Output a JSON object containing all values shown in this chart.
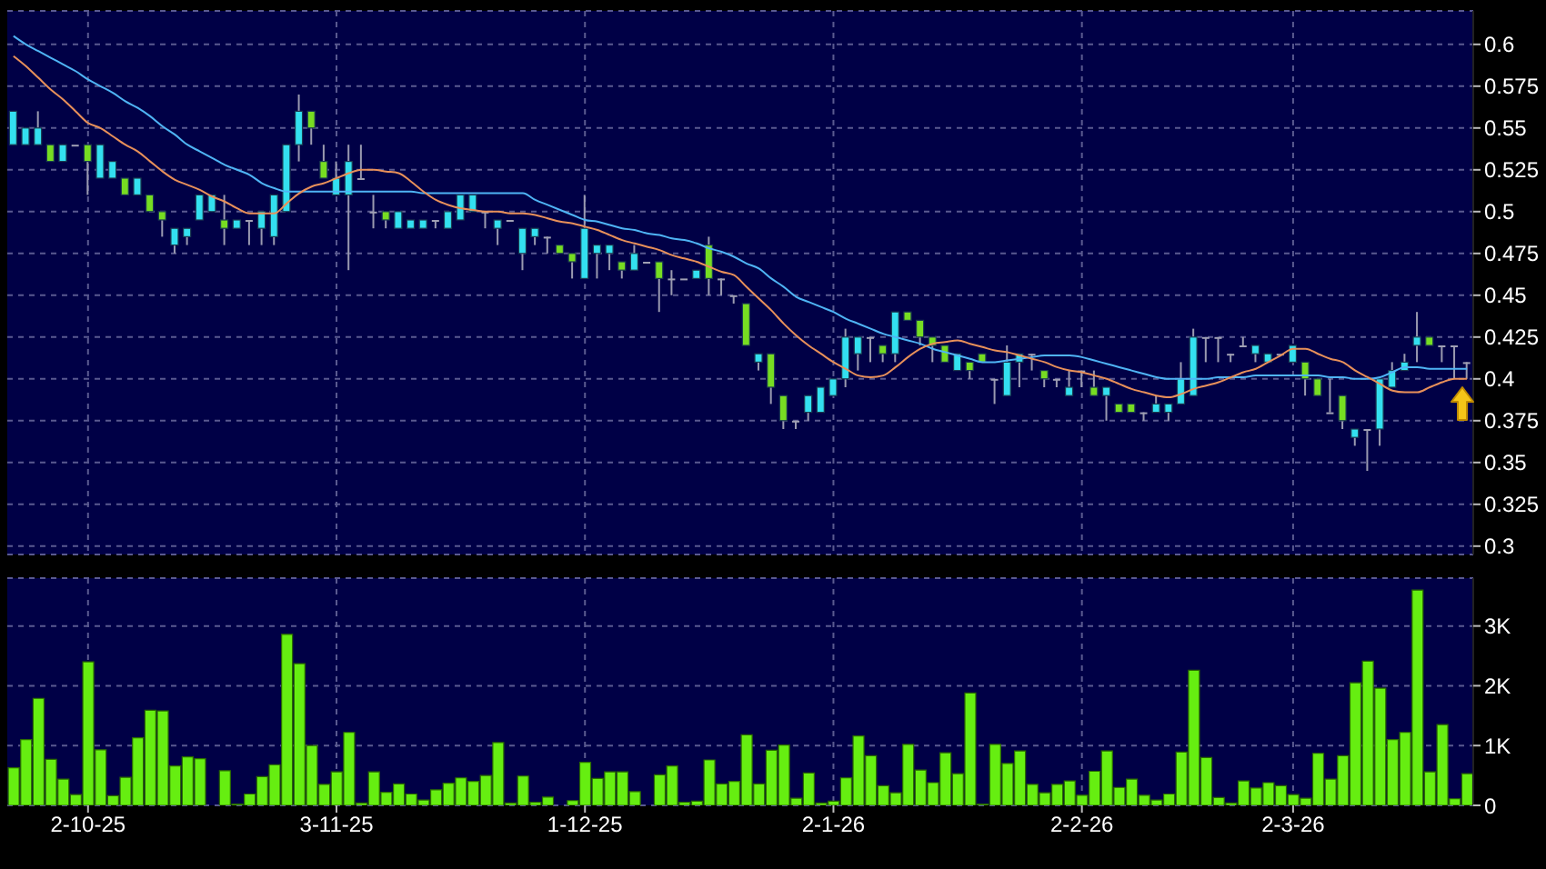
{
  "chart_data": [
    {
      "type": "candlestick",
      "ohlc": [
        [
          0.54,
          0.56,
          0.54,
          0.56
        ],
        [
          0.54,
          0.55,
          0.54,
          0.55
        ],
        [
          0.54,
          0.56,
          0.54,
          0.55
        ],
        [
          0.54,
          0.54,
          0.53,
          0.53
        ],
        [
          0.53,
          0.54,
          0.53,
          0.54
        ],
        [
          0.54,
          0.54,
          0.54,
          0.54
        ],
        [
          0.54,
          0.54,
          0.51,
          0.53
        ],
        [
          0.52,
          0.54,
          0.52,
          0.54
        ],
        [
          0.52,
          0.53,
          0.52,
          0.53
        ],
        [
          0.52,
          0.52,
          0.51,
          0.51
        ],
        [
          0.51,
          0.52,
          0.51,
          0.52
        ],
        [
          0.51,
          0.51,
          0.5,
          0.5
        ],
        [
          0.5,
          0.5,
          0.485,
          0.495
        ],
        [
          0.48,
          0.49,
          0.475,
          0.49
        ],
        [
          0.485,
          0.49,
          0.48,
          0.49
        ],
        [
          0.495,
          0.51,
          0.495,
          0.51
        ],
        [
          0.5,
          0.51,
          0.5,
          0.51
        ],
        [
          0.495,
          0.51,
          0.48,
          0.49
        ],
        [
          0.49,
          0.495,
          0.49,
          0.495
        ],
        [
          0.495,
          0.495,
          0.48,
          0.495
        ],
        [
          0.49,
          0.5,
          0.48,
          0.5
        ],
        [
          0.485,
          0.51,
          0.48,
          0.51
        ],
        [
          0.5,
          0.54,
          0.5,
          0.54
        ],
        [
          0.54,
          0.57,
          0.53,
          0.56
        ],
        [
          0.56,
          0.56,
          0.54,
          0.55
        ],
        [
          0.53,
          0.54,
          0.52,
          0.52
        ],
        [
          0.51,
          0.53,
          0.51,
          0.52
        ],
        [
          0.51,
          0.54,
          0.465,
          0.53
        ],
        [
          0.52,
          0.54,
          0.52,
          0.52
        ],
        [
          0.5,
          0.51,
          0.49,
          0.5
        ],
        [
          0.5,
          0.5,
          0.49,
          0.495
        ],
        [
          0.49,
          0.5,
          0.49,
          0.5
        ],
        [
          0.49,
          0.495,
          0.49,
          0.495
        ],
        [
          0.49,
          0.495,
          0.49,
          0.495
        ],
        [
          0.495,
          0.495,
          0.49,
          0.495
        ],
        [
          0.49,
          0.5,
          0.49,
          0.5
        ],
        [
          0.495,
          0.51,
          0.495,
          0.51
        ],
        [
          0.5,
          0.51,
          0.5,
          0.51
        ],
        [
          0.5,
          0.5,
          0.49,
          0.5
        ],
        [
          0.49,
          0.495,
          0.48,
          0.495
        ],
        [
          0.495,
          0.495,
          0.495,
          0.495
        ],
        [
          0.475,
          0.49,
          0.465,
          0.49
        ],
        [
          0.485,
          0.49,
          0.48,
          0.49
        ],
        [
          0.485,
          0.485,
          0.475,
          0.485
        ],
        [
          0.48,
          0.48,
          0.475,
          0.475
        ],
        [
          0.475,
          0.475,
          0.46,
          0.47
        ],
        [
          0.46,
          0.51,
          0.46,
          0.49
        ],
        [
          0.475,
          0.48,
          0.46,
          0.48
        ],
        [
          0.475,
          0.48,
          0.465,
          0.48
        ],
        [
          0.47,
          0.47,
          0.46,
          0.465
        ],
        [
          0.465,
          0.48,
          0.465,
          0.475
        ],
        [
          0.47,
          0.47,
          0.47,
          0.47
        ],
        [
          0.47,
          0.47,
          0.44,
          0.46
        ],
        [
          0.46,
          0.465,
          0.45,
          0.46
        ],
        [
          0.46,
          0.46,
          0.46,
          0.46
        ],
        [
          0.46,
          0.465,
          0.46,
          0.465
        ],
        [
          0.48,
          0.485,
          0.45,
          0.46
        ],
        [
          0.46,
          0.46,
          0.45,
          0.46
        ],
        [
          0.45,
          0.45,
          0.445,
          0.45
        ],
        [
          0.445,
          0.445,
          0.42,
          0.42
        ],
        [
          0.41,
          0.415,
          0.405,
          0.415
        ],
        [
          0.415,
          0.415,
          0.385,
          0.395
        ],
        [
          0.39,
          0.39,
          0.37,
          0.375
        ],
        [
          0.375,
          0.375,
          0.37,
          0.375
        ],
        [
          0.38,
          0.39,
          0.375,
          0.39
        ],
        [
          0.38,
          0.395,
          0.38,
          0.395
        ],
        [
          0.39,
          0.4,
          0.39,
          0.4
        ],
        [
          0.4,
          0.43,
          0.395,
          0.425
        ],
        [
          0.415,
          0.425,
          0.405,
          0.425
        ],
        [
          0.425,
          0.425,
          0.41,
          0.425
        ],
        [
          0.42,
          0.42,
          0.41,
          0.415
        ],
        [
          0.415,
          0.44,
          0.41,
          0.44
        ],
        [
          0.44,
          0.44,
          0.435,
          0.435
        ],
        [
          0.435,
          0.435,
          0.42,
          0.425
        ],
        [
          0.425,
          0.425,
          0.41,
          0.42
        ],
        [
          0.42,
          0.42,
          0.41,
          0.41
        ],
        [
          0.405,
          0.415,
          0.405,
          0.415
        ],
        [
          0.41,
          0.41,
          0.4,
          0.405
        ],
        [
          0.415,
          0.415,
          0.41,
          0.41
        ],
        [
          0.4,
          0.4,
          0.385,
          0.4
        ],
        [
          0.39,
          0.42,
          0.39,
          0.41
        ],
        [
          0.41,
          0.415,
          0.395,
          0.415
        ],
        [
          0.415,
          0.415,
          0.405,
          0.415
        ],
        [
          0.405,
          0.405,
          0.395,
          0.4
        ],
        [
          0.4,
          0.4,
          0.395,
          0.4
        ],
        [
          0.39,
          0.405,
          0.39,
          0.395
        ],
        [
          0.405,
          0.405,
          0.395,
          0.405
        ],
        [
          0.395,
          0.405,
          0.39,
          0.39
        ],
        [
          0.39,
          0.395,
          0.375,
          0.395
        ],
        [
          0.385,
          0.385,
          0.38,
          0.38
        ],
        [
          0.385,
          0.385,
          0.38,
          0.38
        ],
        [
          0.38,
          0.38,
          0.375,
          0.38
        ],
        [
          0.38,
          0.39,
          0.38,
          0.385
        ],
        [
          0.38,
          0.385,
          0.375,
          0.385
        ],
        [
          0.385,
          0.41,
          0.385,
          0.4
        ],
        [
          0.39,
          0.43,
          0.39,
          0.425
        ],
        [
          0.425,
          0.425,
          0.41,
          0.425
        ],
        [
          0.425,
          0.425,
          0.41,
          0.425
        ],
        [
          0.415,
          0.415,
          0.41,
          0.415
        ],
        [
          0.42,
          0.425,
          0.42,
          0.42
        ],
        [
          0.415,
          0.42,
          0.41,
          0.42
        ],
        [
          0.41,
          0.415,
          0.41,
          0.415
        ],
        [
          0.415,
          0.415,
          0.415,
          0.415
        ],
        [
          0.41,
          0.42,
          0.41,
          0.42
        ],
        [
          0.41,
          0.41,
          0.39,
          0.4
        ],
        [
          0.4,
          0.4,
          0.39,
          0.39
        ],
        [
          0.38,
          0.4,
          0.38,
          0.38
        ],
        [
          0.39,
          0.39,
          0.37,
          0.375
        ],
        [
          0.365,
          0.37,
          0.36,
          0.37
        ],
        [
          0.37,
          0.37,
          0.345,
          0.37
        ],
        [
          0.37,
          0.4,
          0.36,
          0.4
        ],
        [
          0.395,
          0.41,
          0.395,
          0.405
        ],
        [
          0.405,
          0.415,
          0.405,
          0.41
        ],
        [
          0.42,
          0.44,
          0.41,
          0.425
        ],
        [
          0.425,
          0.425,
          0.42,
          0.42
        ],
        [
          0.42,
          0.42,
          0.41,
          0.42
        ],
        [
          0.42,
          0.42,
          0.4,
          0.42
        ],
        [
          0.41,
          0.41,
          0.4,
          0.41
        ]
      ],
      "colors": [
        "#33e0f0",
        "#33e0f0",
        "#33e0f0",
        "#77dd22",
        "#33e0f0",
        "#a0a0b4",
        "#77dd22",
        "#33e0f0",
        "#33e0f0",
        "#77dd22",
        "#33e0f0",
        "#77dd22",
        "#77dd22",
        "#33e0f0",
        "#33e0f0",
        "#33e0f0",
        "#33e0f0",
        "#77dd22",
        "#33e0f0",
        "#a0a0b4",
        "#33e0f0",
        "#33e0f0",
        "#33e0f0",
        "#33e0f0",
        "#77dd22",
        "#77dd22",
        "#33e0f0",
        "#33e0f0",
        "#a0a0b4",
        "#a0a0b4",
        "#77dd22",
        "#33e0f0",
        "#33e0f0",
        "#33e0f0",
        "#a0a0b4",
        "#33e0f0",
        "#33e0f0",
        "#33e0f0",
        "#a0a0b4",
        "#33e0f0",
        "#a0a0b4",
        "#33e0f0",
        "#33e0f0",
        "#a0a0b4",
        "#77dd22",
        "#77dd22",
        "#33e0f0",
        "#33e0f0",
        "#33e0f0",
        "#77dd22",
        "#33e0f0",
        "#a0a0b4",
        "#77dd22",
        "#a0a0b4",
        "#a0a0b4",
        "#33e0f0",
        "#77dd22",
        "#a0a0b4",
        "#a0a0b4",
        "#77dd22",
        "#33e0f0",
        "#77dd22",
        "#77dd22",
        "#a0a0b4",
        "#33e0f0",
        "#33e0f0",
        "#33e0f0",
        "#33e0f0",
        "#33e0f0",
        "#a0a0b4",
        "#77dd22",
        "#33e0f0",
        "#77dd22",
        "#77dd22",
        "#77dd22",
        "#77dd22",
        "#33e0f0",
        "#77dd22",
        "#77dd22",
        "#a0a0b4",
        "#33e0f0",
        "#33e0f0",
        "#a0a0b4",
        "#77dd22",
        "#a0a0b4",
        "#33e0f0",
        "#a0a0b4",
        "#77dd22",
        "#33e0f0",
        "#77dd22",
        "#77dd22",
        "#a0a0b4",
        "#33e0f0",
        "#33e0f0",
        "#33e0f0",
        "#33e0f0",
        "#a0a0b4",
        "#a0a0b4",
        "#a0a0b4",
        "#a0a0b4",
        "#33e0f0",
        "#33e0f0",
        "#a0a0b4",
        "#33e0f0",
        "#77dd22",
        "#77dd22",
        "#a0a0b4",
        "#77dd22",
        "#33e0f0",
        "#a0a0b4",
        "#33e0f0",
        "#33e0f0",
        "#33e0f0",
        "#33e0f0",
        "#77dd22",
        "#a0a0b4",
        "#a0a0b4",
        "#a0a0b4"
      ],
      "series": [
        {
          "type": "line",
          "color": "#4fb4f5",
          "values": [
            0.605,
            0.6,
            0.596,
            0.592,
            0.588,
            0.584,
            0.579,
            0.575,
            0.571,
            0.566,
            0.562,
            0.557,
            0.551,
            0.546,
            0.54,
            0.536,
            0.532,
            0.528,
            0.525,
            0.522,
            0.517,
            0.514,
            0.512,
            0.512,
            0.512,
            0.512,
            0.512,
            0.512,
            0.512,
            0.512,
            0.512,
            0.512,
            0.512,
            0.511,
            0.511,
            0.511,
            0.511,
            0.511,
            0.511,
            0.511,
            0.511,
            0.511,
            0.507,
            0.504,
            0.501,
            0.498,
            0.495,
            0.494,
            0.492,
            0.49,
            0.489,
            0.487,
            0.486,
            0.484,
            0.483,
            0.481,
            0.478,
            0.476,
            0.473,
            0.469,
            0.466,
            0.46,
            0.455,
            0.449,
            0.446,
            0.443,
            0.44,
            0.436,
            0.433,
            0.43,
            0.427,
            0.425,
            0.423,
            0.421,
            0.418,
            0.416,
            0.414,
            0.412,
            0.41,
            0.41,
            0.411,
            0.412,
            0.413,
            0.414,
            0.414,
            0.414,
            0.413,
            0.411,
            0.409,
            0.407,
            0.405,
            0.403,
            0.401,
            0.4,
            0.4,
            0.4,
            0.4,
            0.401,
            0.401,
            0.401,
            0.402,
            0.402,
            0.402,
            0.402,
            0.402,
            0.402,
            0.401,
            0.401,
            0.4,
            0.4,
            0.401,
            0.404,
            0.407,
            0.407,
            0.406,
            0.406,
            0.406,
            0.406
          ]
        },
        {
          "type": "line",
          "color": "#e8905a",
          "values": [
            0.593,
            0.587,
            0.58,
            0.573,
            0.567,
            0.56,
            0.553,
            0.55,
            0.545,
            0.54,
            0.536,
            0.53,
            0.524,
            0.519,
            0.516,
            0.513,
            0.509,
            0.506,
            0.502,
            0.499,
            0.499,
            0.499,
            0.505,
            0.511,
            0.515,
            0.517,
            0.52,
            0.523,
            0.525,
            0.525,
            0.524,
            0.523,
            0.518,
            0.512,
            0.507,
            0.504,
            0.502,
            0.501,
            0.5,
            0.5,
            0.499,
            0.499,
            0.498,
            0.496,
            0.494,
            0.493,
            0.491,
            0.489,
            0.486,
            0.483,
            0.481,
            0.479,
            0.477,
            0.474,
            0.472,
            0.47,
            0.467,
            0.464,
            0.462,
            0.455,
            0.448,
            0.441,
            0.433,
            0.426,
            0.42,
            0.415,
            0.41,
            0.406,
            0.402,
            0.401,
            0.402,
            0.407,
            0.413,
            0.418,
            0.421,
            0.422,
            0.423,
            0.421,
            0.419,
            0.417,
            0.416,
            0.414,
            0.412,
            0.41,
            0.407,
            0.405,
            0.404,
            0.402,
            0.4,
            0.397,
            0.394,
            0.392,
            0.39,
            0.389,
            0.391,
            0.394,
            0.396,
            0.398,
            0.401,
            0.404,
            0.406,
            0.41,
            0.414,
            0.418,
            0.418,
            0.415,
            0.412,
            0.41,
            0.405,
            0.401,
            0.397,
            0.393,
            0.392,
            0.392,
            0.395,
            0.398,
            0.4,
            0.4
          ]
        }
      ],
      "ylim": [
        0.295,
        0.62
      ],
      "yticks": [
        0.3,
        0.325,
        0.35,
        0.375,
        0.4,
        0.425,
        0.45,
        0.475,
        0.5,
        0.525,
        0.55,
        0.575,
        0.6
      ],
      "grid": true,
      "tick_labels": "y"
    },
    {
      "type": "bar",
      "categories": [
        null,
        null,
        null,
        null,
        null,
        null,
        "2-10-25",
        null,
        null,
        null,
        null,
        null,
        null,
        null,
        null,
        null,
        null,
        null,
        null,
        null,
        null,
        null,
        null,
        null,
        null,
        null,
        "3-11-25",
        null,
        null,
        null,
        null,
        null,
        null,
        null,
        null,
        null,
        null,
        null,
        null,
        null,
        null,
        null,
        null,
        null,
        null,
        null,
        "1-12-25",
        null,
        null,
        null,
        null,
        null,
        null,
        null,
        null,
        null,
        null,
        null,
        null,
        null,
        null,
        null,
        null,
        null,
        null,
        null,
        "2-1-26",
        null,
        null,
        null,
        null,
        null,
        null,
        null,
        null,
        null,
        null,
        null,
        null,
        null,
        null,
        null,
        null,
        null,
        null,
        null,
        "2-2-26",
        null,
        null,
        null,
        null,
        null,
        null,
        null,
        null,
        null,
        null,
        null,
        null,
        null,
        null,
        null,
        null,
        "2-3-26",
        null,
        null,
        null,
        null,
        null,
        null,
        null,
        null,
        null,
        null,
        null,
        null,
        null,
        null
      ],
      "values": [
        630,
        1100,
        1790,
        770,
        440,
        180,
        2400,
        930,
        160,
        470,
        1130,
        1590,
        1580,
        660,
        810,
        780,
        null,
        580,
        20,
        190,
        480,
        680,
        2860,
        2370,
        1000,
        350,
        560,
        1220,
        40,
        560,
        220,
        360,
        190,
        90,
        260,
        370,
        460,
        400,
        500,
        1050,
        40,
        490,
        50,
        140,
        null,
        80,
        720,
        450,
        560,
        560,
        230,
        null,
        510,
        660,
        50,
        70,
        760,
        360,
        400,
        1180,
        360,
        920,
        1010,
        120,
        540,
        40,
        70,
        460,
        1160,
        830,
        330,
        210,
        1020,
        590,
        380,
        880,
        530,
        1880,
        20,
        1020,
        700,
        910,
        350,
        210,
        350,
        410,
        170,
        570,
        910,
        300,
        440,
        170,
        90,
        190,
        890,
        2260,
        800,
        130,
        40,
        410,
        290,
        380,
        330,
        180,
        120,
        870,
        440,
        830,
        2050,
        2410,
        1960,
        1100,
        1220,
        3600,
        560,
        1350,
        110,
        530
      ],
      "color": "#66ee11",
      "ylim": [
        0,
        3800
      ],
      "yticks": [
        0,
        {
          "value": 1000,
          "label": "1K"
        },
        {
          "value": 2000,
          "label": "2K"
        },
        {
          "value": 3000,
          "label": "3K"
        }
      ],
      "grid": true
    }
  ]
}
